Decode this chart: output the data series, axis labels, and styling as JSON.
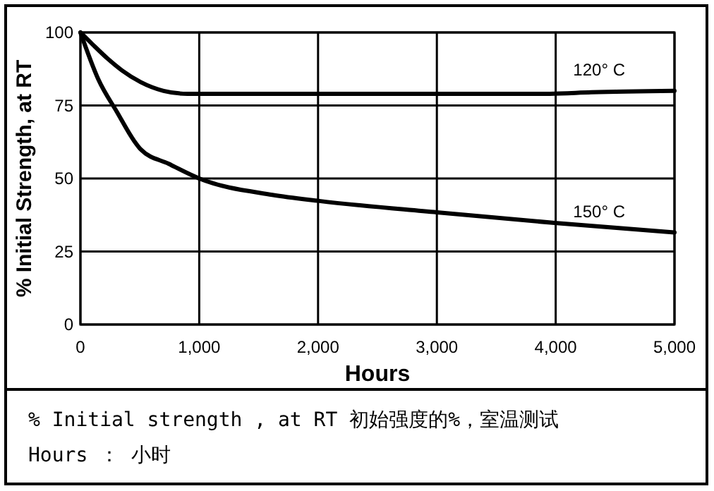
{
  "chart_data": {
    "type": "line",
    "xlabel": "Hours",
    "ylabel": "% Initial Strength, at RT",
    "xlim": [
      0,
      5000
    ],
    "ylim": [
      0,
      100
    ],
    "xticks": [
      0,
      {
        "value": 1000,
        "label": "1,000"
      },
      {
        "value": 2000,
        "label": "2,000"
      },
      {
        "value": 3000,
        "label": "3,000"
      },
      {
        "value": 4000,
        "label": "4,000"
      },
      {
        "value": 5000,
        "label": "5,000"
      }
    ],
    "yticks": [
      0,
      25,
      50,
      75,
      100
    ],
    "grid": true,
    "line_style": "solid",
    "marker": "none",
    "series": [
      {
        "name": "120° C",
        "color": "#000000",
        "x": [
          0,
          100,
          230,
          350,
          507,
          700,
          900,
          2000,
          3000,
          3950,
          4300,
          5000
        ],
        "values": [
          100,
          96,
          91,
          87,
          83,
          80,
          79,
          79,
          79,
          79,
          79.5,
          80
        ]
      },
      {
        "name": "150° C",
        "color": "#000000",
        "x": [
          0,
          150,
          310,
          450,
          507,
          744,
          1000,
          1615,
          2010,
          3000,
          4010,
          5000
        ],
        "values": [
          100,
          84,
          72.6,
          63,
          60,
          55,
          50,
          44.4,
          42.3,
          38.4,
          34.7,
          31.5
        ]
      }
    ],
    "annotations": [
      "% Initial strength , at RT 初始强度的%，室温测试",
      "Hours ： 小时"
    ]
  }
}
